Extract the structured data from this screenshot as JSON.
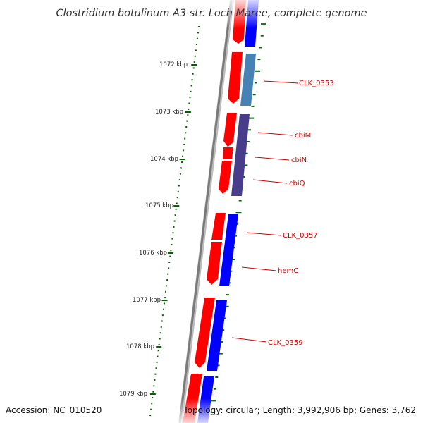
{
  "title": "Clostridium botulinum A3 str. Loch Maree, complete genome",
  "ticks": [
    {
      "label": "1072 kbp"
    },
    {
      "label": "1073 kbp"
    },
    {
      "label": "1074 kbp"
    },
    {
      "label": "1075 kbp"
    },
    {
      "label": "1076 kbp"
    },
    {
      "label": "1077 kbp"
    },
    {
      "label": "1078 kbp"
    },
    {
      "label": "1079 kbp"
    }
  ],
  "genes": [
    {
      "label": "CLK_0353"
    },
    {
      "label": "cbiM"
    },
    {
      "label": "cbiN"
    },
    {
      "label": "cbiQ"
    },
    {
      "label": "CLK_0357"
    },
    {
      "label": "hemC"
    },
    {
      "label": "CLK_0359"
    }
  ],
  "footer": {
    "accession": "Accession: NC_010520",
    "stats": "Topology: circular; Length: 3,992,906 bp; Genes: 3,762"
  },
  "colors": {
    "cds_forward": "#ff0000",
    "cds_reverse_blue": "#0000ff",
    "cds_steelblue": "#4682b4",
    "cds_purple": "#483d8b",
    "label_red": "#cc0000",
    "tick_green": "#006400",
    "backbone": "#808080"
  }
}
